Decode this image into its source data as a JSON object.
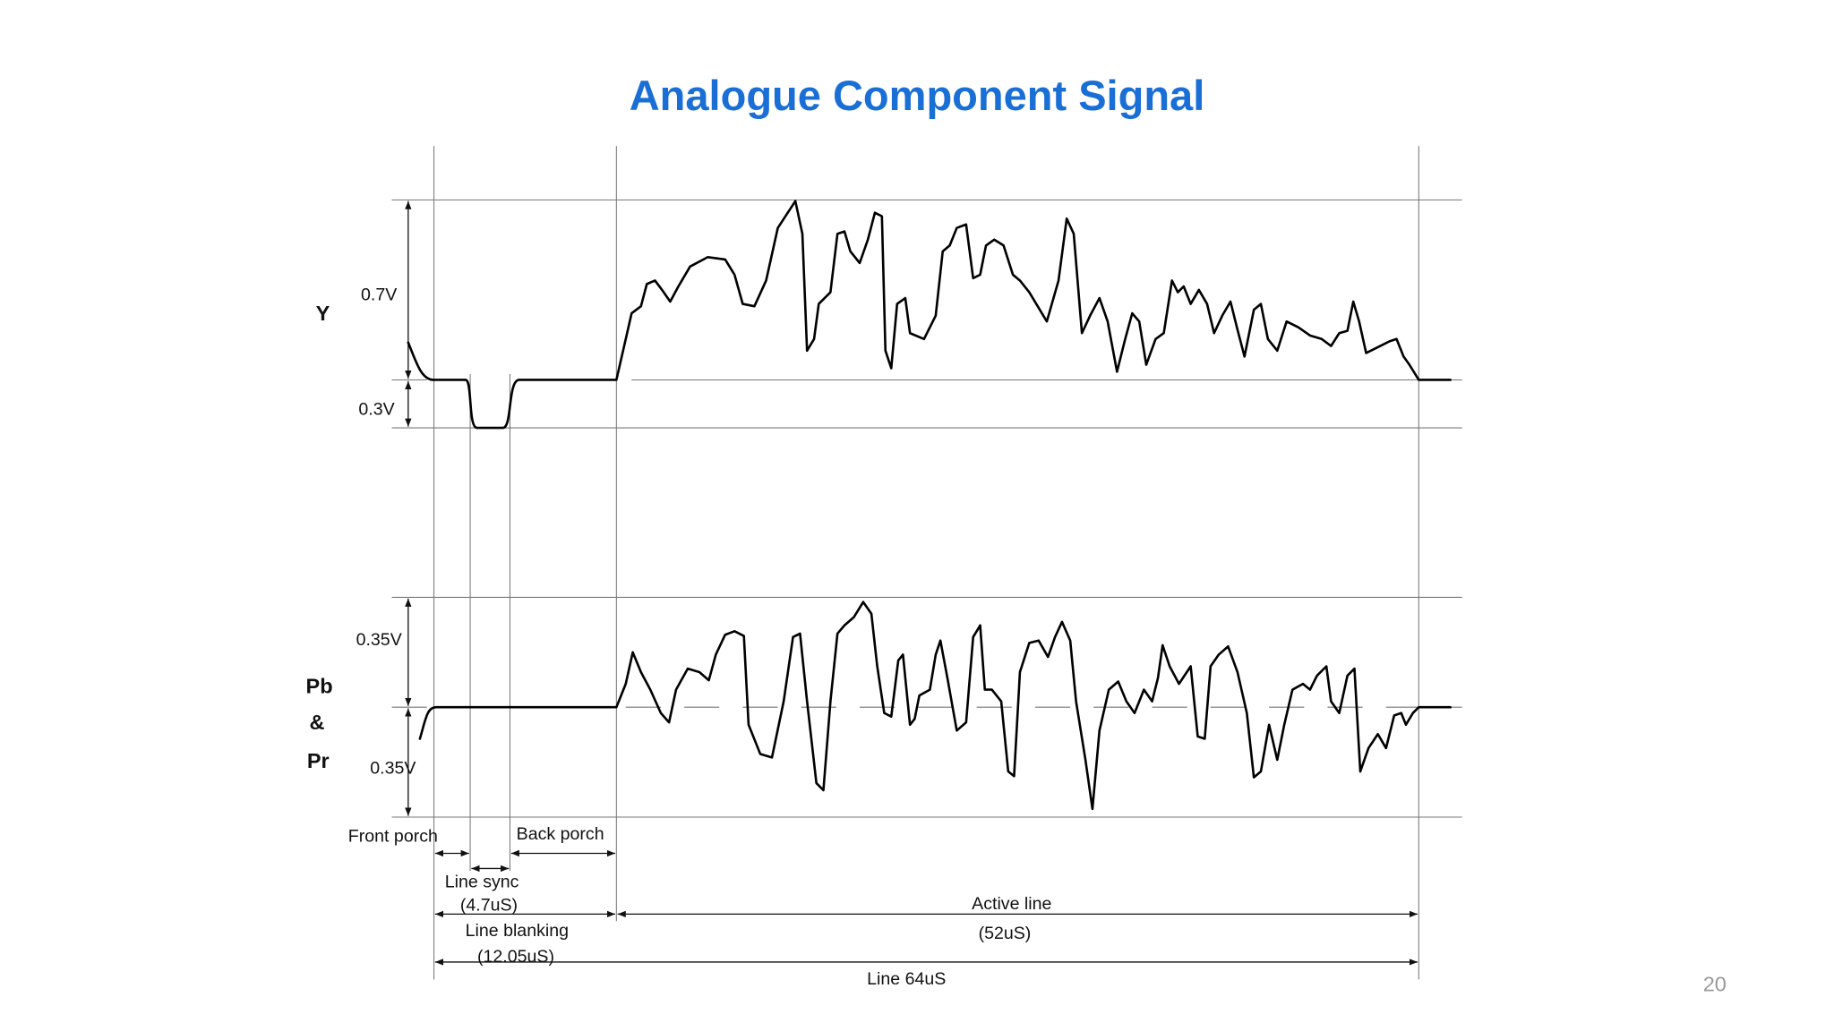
{
  "title": "Analogue Component Signal",
  "y_signal": {
    "name": "Y",
    "upper_level": "0.7V",
    "lower_level": "0.3V"
  },
  "pbpr_signal": {
    "name_lines": [
      "Pb",
      "&",
      "Pr"
    ],
    "upper_level": "0.35V",
    "lower_level": "0.35V"
  },
  "timing": {
    "front_porch": "Front porch",
    "back_porch": "Back porch",
    "line_sync": "Line sync",
    "line_sync_duration": "(4.7uS)",
    "line_blanking": "Line blanking",
    "line_blanking_duration": "(12.05uS)",
    "active_line": "Active line",
    "active_line_duration": "(52uS)",
    "full_line": "Line 64uS"
  },
  "page_number": "20"
}
